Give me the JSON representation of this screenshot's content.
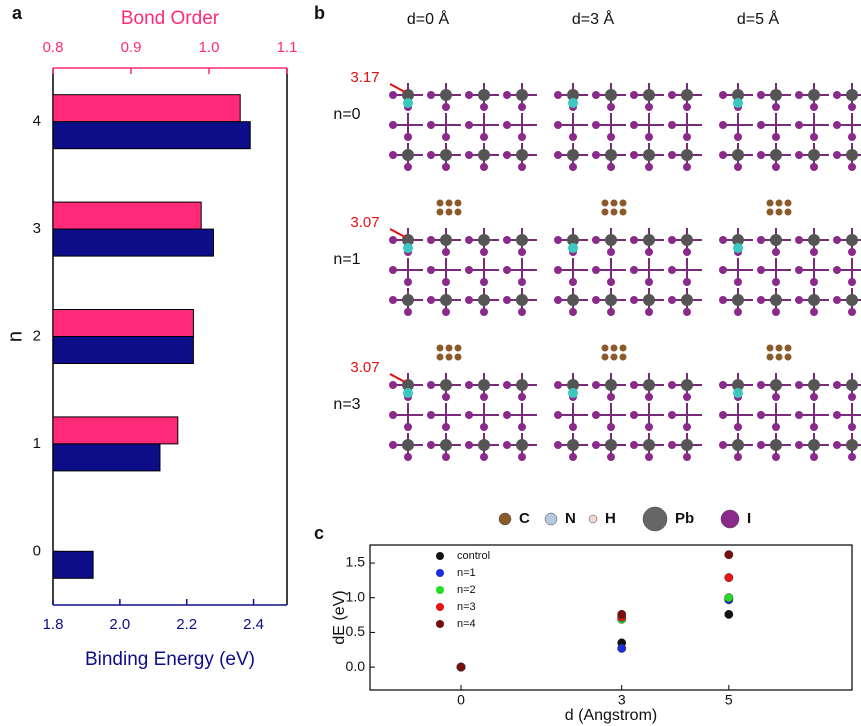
{
  "panel_labels": [
    "a",
    "b",
    "c"
  ],
  "chart_data": [
    {
      "type": "hbar",
      "ylabel": "n",
      "categories": [
        "0",
        "1",
        "2",
        "3",
        "4"
      ],
      "xlabel": "Binding Energy (eV)",
      "xlim": [
        1.8,
        2.5
      ],
      "xticks": [
        1.8,
        {
          "value": 2,
          "label": "2.0"
        },
        2.2,
        2.4
      ],
      "x2label": "Bond Order",
      "x2lim": [
        0.8,
        1.1
      ],
      "x2ticks": [
        0.8,
        0.9,
        {
          "value": 1,
          "label": "1.0"
        },
        1.1
      ],
      "series": [
        {
          "color": "#ff2a78",
          "axis": "x2",
          "values": [
            null,
            0.96,
            0.98,
            0.99,
            1.04
          ]
        },
        {
          "color": "#0d0d8a",
          "axis": "x",
          "values": [
            1.92,
            2.12,
            2.22,
            2.28,
            2.39
          ]
        }
      ]
    },
    {
      "type": "scatter",
      "xlabel": "d (Angstrom)",
      "ylabel": "dE (eV)",
      "x": [
        0,
        3,
        5
      ],
      "xlim": [
        -1.7,
        7.3
      ],
      "xticks": [
        0,
        3,
        5
      ],
      "ylim": [
        -0.33,
        1.76
      ],
      "yticks": [
        {
          "value": 0,
          "label": "0.0"
        },
        0.5,
        {
          "value": 1,
          "label": "1.0"
        },
        1.5
      ],
      "series": [
        {
          "name": "control",
          "color": "#111111",
          "values": [
            0,
            0.35,
            0.76
          ]
        },
        {
          "name": "n=1",
          "color": "#1a2ee0",
          "values": [
            0,
            0.27,
            0.97
          ]
        },
        {
          "name": "n=2",
          "color": "#22dd22",
          "values": [
            0,
            0.69,
            1.0
          ]
        },
        {
          "name": "n=3",
          "color": "#ee1111",
          "values": [
            0,
            0.72,
            1.29
          ]
        },
        {
          "name": "n=4",
          "color": "#7a0c0c",
          "values": [
            0,
            0.76,
            1.62
          ]
        }
      ]
    }
  ],
  "structure_panel": {
    "columns": [
      "d=0 Å",
      "d=3 Å",
      "d=5 Å"
    ],
    "rows": [
      "n=0",
      "n=1",
      "n=3"
    ],
    "distances": [
      "3.17",
      "3.07",
      "3.07"
    ],
    "atoms": [
      "C",
      "N",
      "H",
      "Pb",
      "I"
    ]
  }
}
